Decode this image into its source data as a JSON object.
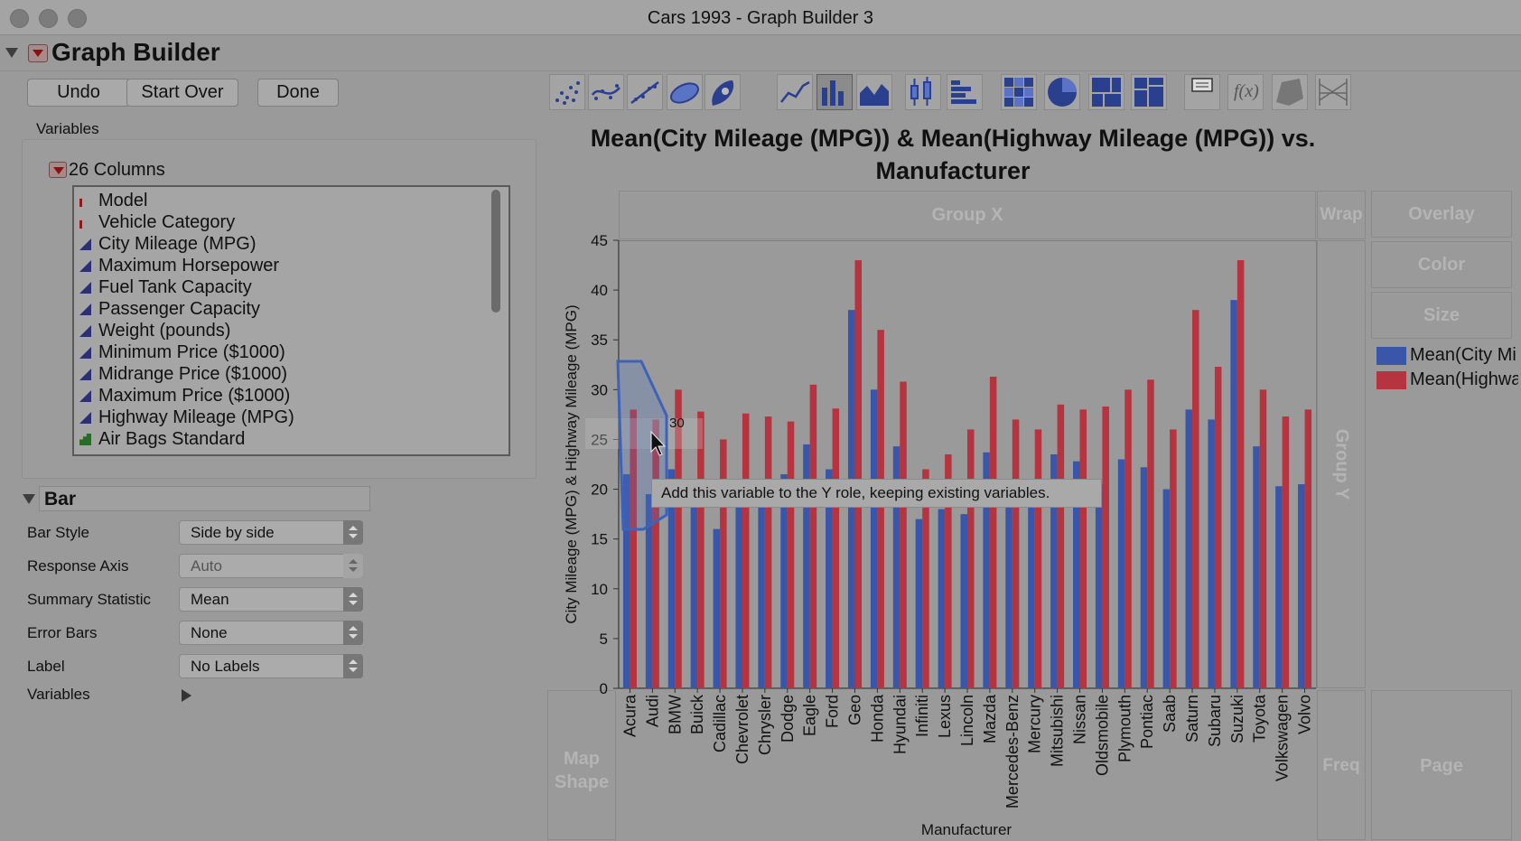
{
  "window": {
    "title": "Cars 1993 - Graph Builder 3"
  },
  "graph_builder": {
    "title": "Graph Builder"
  },
  "buttons": {
    "undo": "Undo",
    "start_over": "Start Over",
    "done": "Done"
  },
  "variables": {
    "section_label": "Variables",
    "columns_header": "26 Columns",
    "items": [
      {
        "label": "Model",
        "type": "nominal"
      },
      {
        "label": "Vehicle Category",
        "type": "nominal"
      },
      {
        "label": "City Mileage (MPG)",
        "type": "continuous"
      },
      {
        "label": "Maximum Horsepower",
        "type": "continuous"
      },
      {
        "label": "Fuel Tank Capacity",
        "type": "continuous"
      },
      {
        "label": "Passenger Capacity",
        "type": "continuous"
      },
      {
        "label": "Weight (pounds)",
        "type": "continuous"
      },
      {
        "label": "Minimum Price ($1000)",
        "type": "continuous"
      },
      {
        "label": "Midrange Price ($1000)",
        "type": "continuous"
      },
      {
        "label": "Maximum Price ($1000)",
        "type": "continuous"
      },
      {
        "label": "Highway Mileage (MPG)",
        "type": "continuous"
      },
      {
        "label": "Air Bags Standard",
        "type": "ordinal"
      }
    ]
  },
  "bar_section": {
    "title": "Bar",
    "options": [
      {
        "label": "Bar Style",
        "value": "Side by side",
        "disabled": false
      },
      {
        "label": "Response Axis",
        "value": "Auto",
        "disabled": true
      },
      {
        "label": "Summary Statistic",
        "value": "Mean",
        "disabled": false
      },
      {
        "label": "Error Bars",
        "value": "None",
        "disabled": false
      },
      {
        "label": "Label",
        "value": "No Labels",
        "disabled": false
      }
    ],
    "variables_label": "Variables"
  },
  "toolbar": {
    "icons": [
      "points-icon",
      "smoother-icon",
      "line-of-fit-icon",
      "ellipse-icon",
      "contour-icon",
      "line-icon",
      "bar-icon",
      "area-icon",
      "box-plot-icon",
      "histogram-icon",
      "heatmap-icon",
      "pie-icon",
      "treemap-icon",
      "mosaic-icon",
      "caption-box-icon",
      "formula-icon",
      "map-shapes-icon",
      "parallel-icon"
    ],
    "selected": "bar-icon"
  },
  "zones": {
    "group_x": "Group X",
    "wrap": "Wrap",
    "overlay": "Overlay",
    "color": "Color",
    "size": "Size",
    "group_y": "Group Y",
    "map_shape": "Map Shape",
    "freq": "Freq",
    "page": "Page"
  },
  "legend": [
    {
      "label": "Mean(City Mi",
      "color": "#3a56a8"
    },
    {
      "label": "Mean(Highwa",
      "color": "#b5343f"
    }
  ],
  "tooltip": {
    "text": "Add this variable to the Y role, keeping existing variables."
  },
  "drag_preview": {
    "value": "30"
  },
  "chart_data": {
    "type": "bar",
    "title": "Mean(City Mileage (MPG)) & Mean(Highway Mileage (MPG)) vs. Manufacturer",
    "xlabel": "Manufacturer",
    "ylabel": "City Mileage (MPG) & Highway Mileage (MPG)",
    "ylim": [
      0,
      45
    ],
    "yticks": [
      0,
      5,
      10,
      15,
      20,
      25,
      30,
      35,
      40,
      45
    ],
    "categories": [
      "Acura",
      "Audi",
      "BMW",
      "Buick",
      "Cadillac",
      "Chevrolet",
      "Chrysler",
      "Dodge",
      "Eagle",
      "Ford",
      "Geo",
      "Honda",
      "Hyundai",
      "Infiniti",
      "Lexus",
      "Lincoln",
      "Mazda",
      "Mercedes-Benz",
      "Mercury",
      "Mitsubishi",
      "Nissan",
      "Oldsmobile",
      "Plymouth",
      "Pontiac",
      "Saab",
      "Saturn",
      "Subaru",
      "Suzuki",
      "Toyota",
      "Volkswagen",
      "Volvo"
    ],
    "series": [
      {
        "name": "Mean(City Mileage (MPG))",
        "color": "#3a56a8",
        "values": [
          21.5,
          19.5,
          22,
          19,
          16,
          19.5,
          21,
          21.5,
          24.5,
          22,
          38,
          30,
          24.3,
          17,
          18,
          17.5,
          23.7,
          19,
          21,
          23.5,
          22.8,
          20.5,
          23,
          22.2,
          20,
          28,
          27,
          39,
          24.3,
          20.3,
          20.5
        ]
      },
      {
        "name": "Mean(Highway Mileage (MPG))",
        "color": "#b5343f",
        "values": [
          28,
          27,
          30,
          27.8,
          25,
          27.6,
          27.3,
          26.8,
          30.5,
          28.1,
          43,
          36,
          30.8,
          22,
          23.5,
          26,
          31.3,
          27,
          26,
          28.5,
          28,
          28.3,
          30,
          31,
          26,
          38,
          32.3,
          43,
          30,
          27.3,
          28
        ]
      }
    ],
    "grid": false,
    "legend": "right"
  }
}
